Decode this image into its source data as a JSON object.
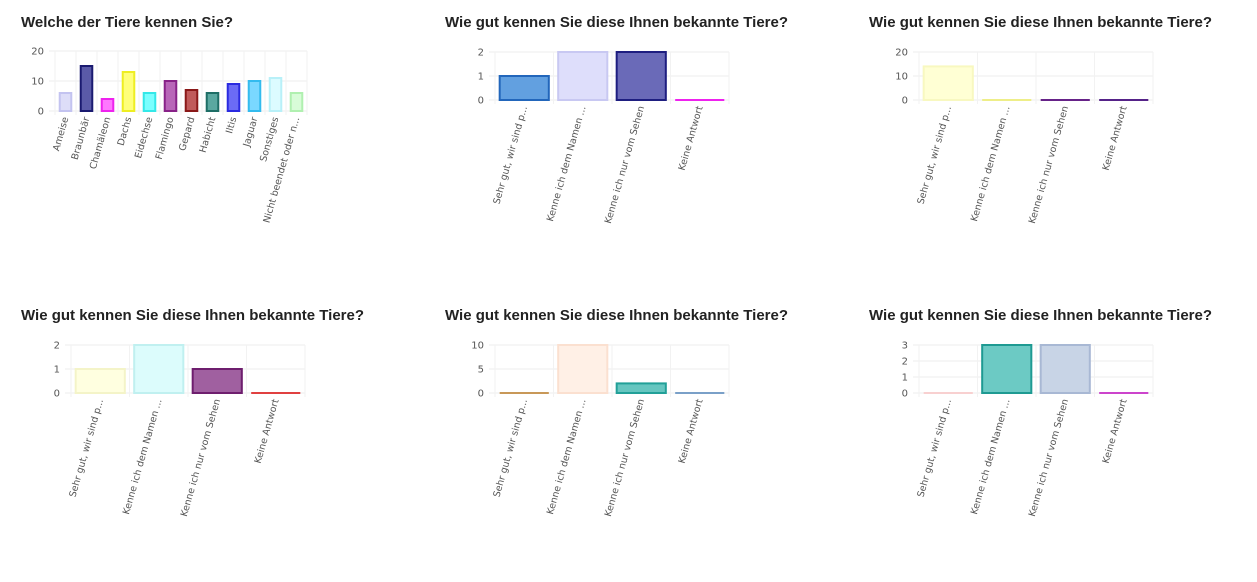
{
  "charts": [
    {
      "title": "Welche der Tiere kennen Sie?",
      "chart_data": {
        "type": "bar",
        "categories": [
          "Ameise",
          "Braunbär",
          "Chamäleon",
          "Dachs",
          "Eidechse",
          "Flamingo",
          "Gepard",
          "Habicht",
          "Iltis",
          "Jaguar",
          "Sonstiges",
          "Nicht beendet oder n..."
        ],
        "values": [
          6,
          15,
          4,
          13,
          6,
          10,
          7,
          6,
          9,
          10,
          11,
          6
        ],
        "ylim": [
          0,
          20
        ],
        "yticks": [
          0,
          10,
          20
        ],
        "colors": [
          [
            "#ddddf8",
            "#c3c3f0"
          ],
          [
            "#5a5aa8",
            "#1a1a70"
          ],
          [
            "#ff77ff",
            "#ee22ee"
          ],
          [
            "#ffff7a",
            "#eeee22"
          ],
          [
            "#7affff",
            "#33e8e8"
          ],
          [
            "#b866b8",
            "#882288"
          ],
          [
            "#c05a5a",
            "#8a1818"
          ],
          [
            "#5aa8a0",
            "#1e6e66"
          ],
          [
            "#6b6bf5",
            "#2a2ae0"
          ],
          [
            "#7ad8ff",
            "#33bbee"
          ],
          [
            "#dcfbff",
            "#b8f0f8"
          ],
          [
            "#d8fcd8",
            "#b0f0b0"
          ]
        ],
        "grid": true
      }
    },
    {
      "title": "Wie gut kennen Sie diese Ihnen bekannte Tiere?",
      "chart_data": {
        "type": "bar",
        "categories": [
          "Sehr gut, wir sind p...",
          "Kenne ich dem Namen ...",
          "Kenne ich nur vom Sehen",
          "Keine Antwort"
        ],
        "values": [
          1,
          2,
          2,
          0
        ],
        "ylim": [
          0,
          2
        ],
        "yticks": [
          0,
          1,
          2
        ],
        "colors": [
          [
            "#62a0e0",
            "#2266bb"
          ],
          [
            "#dedefb",
            "#c8c8f2"
          ],
          [
            "#6a6ab8",
            "#1e1e80"
          ],
          [
            "#f066f0",
            "#ee22ee"
          ]
        ],
        "grid": true
      }
    },
    {
      "title": "Wie gut kennen Sie diese Ihnen bekannte Tiere?",
      "chart_data": {
        "type": "bar",
        "categories": [
          "Sehr gut, wir sind p...",
          "Kenne ich dem Namen ...",
          "Kenne ich nur vom Sehen",
          "Keine Antwort"
        ],
        "values": [
          14,
          0,
          0,
          0
        ],
        "ylim": [
          0,
          20
        ],
        "yticks": [
          0,
          10,
          20
        ],
        "colors": [
          [
            "#ffffd4",
            "#f8f8c0"
          ],
          [
            "#ffffc0",
            "#eeee88"
          ],
          [
            "#9a5ab0",
            "#662288"
          ],
          [
            "#7a3aa0",
            "#552288"
          ]
        ],
        "grid": true
      }
    },
    {
      "title": "Wie gut kennen Sie diese Ihnen bekannte Tiere?",
      "chart_data": {
        "type": "bar",
        "categories": [
          "Sehr gut, wir sind p...",
          "Kenne ich dem Namen ...",
          "Kenne ich nur vom Sehen",
          "Keine Antwort"
        ],
        "values": [
          1,
          2,
          1,
          0
        ],
        "ylim": [
          0,
          2
        ],
        "yticks": [
          0,
          1,
          2
        ],
        "colors": [
          [
            "#ffffe0",
            "#f4f4c8"
          ],
          [
            "#dcfcfc",
            "#c0f0f0"
          ],
          [
            "#a060a0",
            "#6e1e6e"
          ],
          [
            "#f08080",
            "#e04040"
          ]
        ],
        "grid": true
      }
    },
    {
      "title": "Wie gut kennen Sie diese Ihnen bekannte Tiere?",
      "chart_data": {
        "type": "bar",
        "categories": [
          "Sehr gut, wir sind p...",
          "Kenne ich dem Namen ...",
          "Kenne ich nur vom Sehen",
          "Keine Antwort"
        ],
        "values": [
          0,
          10,
          2,
          0
        ],
        "ylim": [
          0,
          10
        ],
        "yticks": [
          0,
          5,
          10
        ],
        "colors": [
          [
            "#e8c8a0",
            "#c89858"
          ],
          [
            "#fff0e6",
            "#fbe0d0"
          ],
          [
            "#66c6c0",
            "#22a098"
          ],
          [
            "#a8c4e0",
            "#7aa0c8"
          ]
        ],
        "grid": true
      }
    },
    {
      "title": "Wie gut kennen Sie diese Ihnen bekannte Tiere?",
      "chart_data": {
        "type": "bar",
        "categories": [
          "Sehr gut, wir sind p...",
          "Kenne ich dem Namen ...",
          "Kenne ich nur vom Sehen",
          "Keine Antwort"
        ],
        "values": [
          0,
          3,
          3,
          0
        ],
        "ylim": [
          0,
          3
        ],
        "yticks": [
          0,
          1,
          2,
          3
        ],
        "colors": [
          [
            "#fde8e8",
            "#f8d0d0"
          ],
          [
            "#6ccac4",
            "#1e9a92"
          ],
          [
            "#c8d4e6",
            "#a8b8d4"
          ],
          [
            "#e088e0",
            "#cc44cc"
          ]
        ],
        "grid": true
      }
    }
  ]
}
